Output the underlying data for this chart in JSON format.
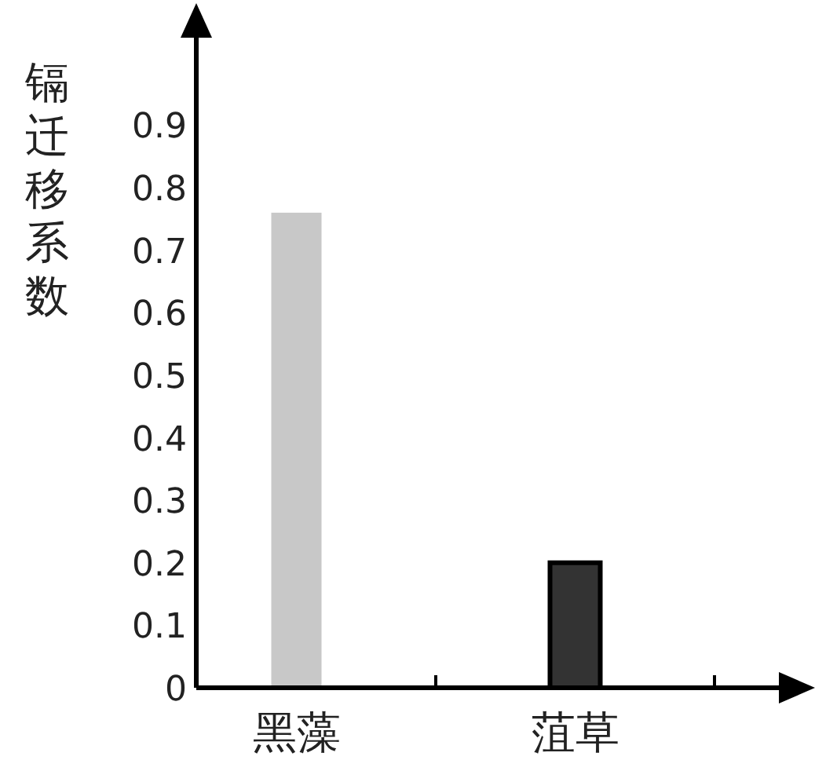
{
  "chart_data": {
    "type": "bar",
    "ylabel": "镉迁移系数",
    "categories": [
      "黑藻",
      "菹草"
    ],
    "values": [
      0.76,
      0.2
    ],
    "colors": [
      "#c8c8c8",
      "#333333"
    ],
    "ylim": [
      0,
      1.05
    ],
    "yticks": [
      0,
      0.1,
      0.2,
      0.3,
      0.4,
      0.5,
      0.6,
      0.7,
      0.8,
      0.9
    ],
    "grid": false
  }
}
